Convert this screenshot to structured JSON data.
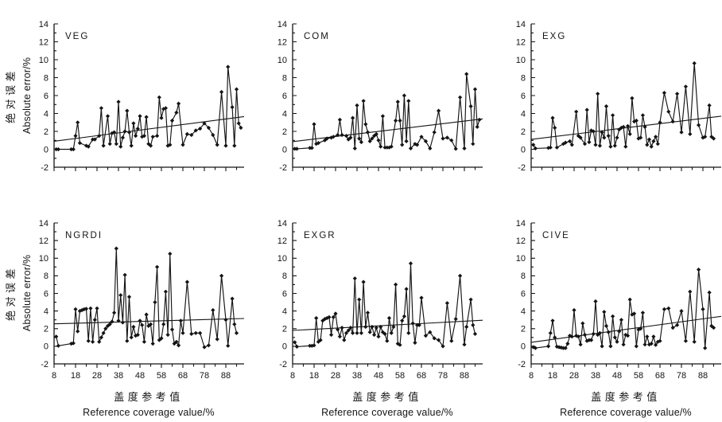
{
  "figure": {
    "ylabel_cn": "绝对误差",
    "ylabel_en": "Absolute error/%",
    "xlabel_cn": "盖度参考值",
    "xlabel_en": "Reference coverage value/%",
    "ink_color": "#141414",
    "background": "#ffffff"
  },
  "axes": {
    "xlim": [
      8,
      96.5
    ],
    "ylim": [
      -2,
      14
    ],
    "xticks": [
      8,
      18,
      28,
      38,
      48,
      58,
      68,
      78,
      88
    ],
    "xticks_minor": [
      13,
      23,
      33,
      43,
      53,
      63,
      73,
      83,
      93
    ],
    "yticks": [
      -2,
      0,
      2,
      4,
      6,
      8,
      10,
      12,
      14
    ],
    "yticks_minor": [
      -1,
      1,
      3,
      5,
      7,
      9,
      11,
      13
    ],
    "grid": false,
    "x_tick_labels_bottom_row_only": true
  },
  "chart_data": [
    {
      "type": "line",
      "label": "VEG",
      "marker": "diamond",
      "x": [
        9,
        10,
        16,
        17,
        18,
        19,
        20,
        23,
        24,
        26,
        27,
        29,
        30,
        31,
        33,
        34,
        35,
        36,
        37,
        38,
        39,
        40,
        41,
        42,
        43,
        44,
        45,
        46,
        47,
        48,
        49,
        50,
        51,
        52,
        53,
        54,
        56,
        57,
        58,
        59,
        60,
        61,
        62,
        63,
        65,
        66,
        68,
        70,
        72,
        74,
        76,
        78,
        80,
        82,
        84,
        86,
        88,
        89,
        91,
        92,
        93,
        94,
        95
      ],
      "y": [
        0,
        0,
        0,
        0,
        1.5,
        3,
        0.7,
        0.4,
        0.3,
        1.1,
        1.1,
        1.5,
        4.6,
        0.4,
        3.7,
        0.6,
        1.8,
        1.9,
        0.6,
        5.3,
        0.3,
        1.3,
        2,
        4.3,
        1.9,
        0.4,
        2.9,
        1.5,
        2.3,
        3.7,
        1.4,
        1.5,
        3.6,
        0.6,
        0.4,
        1.4,
        1.5,
        5.8,
        3.5,
        4.5,
        4.6,
        0.4,
        0.5,
        3.2,
        4.1,
        5.1,
        0.5,
        1.7,
        1.6,
        2.1,
        2.3,
        2.9,
        2.4,
        1.6,
        0.5,
        6.4,
        0.4,
        9.2,
        4.7,
        0.4,
        6.7,
        2.9,
        2.4
      ],
      "trend": [
        0.9,
        3.65
      ]
    },
    {
      "type": "line",
      "label": "COM",
      "marker": "diamond",
      "x": [
        9,
        10,
        16,
        17,
        18,
        19,
        20,
        23,
        24,
        26,
        27,
        29,
        30,
        31,
        33,
        34,
        35,
        36,
        37,
        38,
        39,
        40,
        41,
        42,
        43,
        44,
        45,
        46,
        47,
        48,
        49,
        50,
        51,
        52,
        53,
        54,
        56,
        57,
        58,
        59,
        60,
        61,
        62,
        63,
        65,
        66,
        68,
        70,
        72,
        74,
        76,
        78,
        80,
        82,
        84,
        86,
        88,
        89,
        91,
        92,
        93,
        94,
        95
      ],
      "y": [
        0.05,
        0.05,
        0.15,
        0.15,
        2.8,
        0.6,
        0.7,
        1,
        1.2,
        1.3,
        1.4,
        1.6,
        3.3,
        1.6,
        1.5,
        1.1,
        1.3,
        3.5,
        0.1,
        4.9,
        1.2,
        0.8,
        5.4,
        2.8,
        1.9,
        0.9,
        1.2,
        1.5,
        1.7,
        1,
        0.3,
        3.7,
        0.2,
        0.2,
        0.2,
        0.3,
        3.2,
        5.3,
        3.2,
        0.5,
        6,
        0.9,
        5.4,
        0.1,
        0.6,
        0.5,
        1.4,
        0.9,
        0.1,
        1.9,
        4.3,
        1.2,
        1.3,
        1,
        0.05,
        5.8,
        0.1,
        8.4,
        4.8,
        0.6,
        6.7,
        2.5,
        3.3
      ],
      "trend": [
        0.85,
        3.4
      ]
    },
    {
      "type": "line",
      "label": "EXG",
      "marker": "diamond",
      "x": [
        9,
        10,
        16,
        17,
        18,
        19,
        20,
        23,
        24,
        26,
        27,
        29,
        30,
        31,
        33,
        34,
        35,
        36,
        37,
        38,
        39,
        40,
        41,
        42,
        43,
        44,
        45,
        46,
        47,
        48,
        49,
        50,
        51,
        52,
        53,
        54,
        55,
        56,
        57,
        58,
        59,
        60,
        61,
        62,
        63,
        64,
        65,
        66,
        67,
        68,
        70,
        72,
        74,
        76,
        78,
        80,
        82,
        84,
        86,
        88,
        89,
        91,
        92,
        93
      ],
      "y": [
        0.5,
        0.1,
        0.15,
        0.2,
        3.5,
        2.4,
        0.2,
        0.6,
        0.75,
        0.9,
        0.5,
        4.2,
        1.5,
        1.3,
        0.6,
        4.4,
        0.8,
        2.1,
        2,
        0.5,
        6.2,
        0.4,
        1.9,
        1.3,
        4.8,
        1.5,
        0.3,
        3.8,
        0.4,
        1.3,
        2.2,
        2.4,
        2.5,
        0.3,
        2.6,
        1.7,
        5.7,
        3.1,
        3.2,
        1.2,
        1.3,
        3.8,
        2.5,
        0.5,
        1.1,
        0.3,
        0.9,
        1.4,
        0.6,
        3,
        6.3,
        4.2,
        3.1,
        6.2,
        1.9,
        7,
        1.7,
        9.6,
        2.7,
        1.3,
        1.4,
        4.9,
        1.4,
        1.2
      ],
      "trend": [
        1.1,
        3.7
      ]
    },
    {
      "type": "line",
      "label": "NGRDI",
      "marker": "diamond",
      "x": [
        9,
        10,
        16,
        17,
        18,
        19,
        20,
        21,
        22,
        23,
        24,
        25,
        26,
        27,
        28,
        29,
        30,
        31,
        32,
        33,
        34,
        35,
        36,
        37,
        38,
        39,
        40,
        41,
        42,
        43,
        44,
        45,
        46,
        47,
        48,
        49,
        50,
        51,
        52,
        53,
        54,
        55,
        56,
        57,
        58,
        59,
        60,
        61,
        62,
        63,
        64,
        65,
        66,
        67,
        68,
        70,
        72,
        74,
        76,
        78,
        80,
        82,
        84,
        86,
        88,
        89,
        91,
        92,
        93
      ],
      "y": [
        1.1,
        0.05,
        0.3,
        0.35,
        4.2,
        1.7,
        4,
        4.1,
        4.2,
        4.25,
        0.6,
        4.3,
        0.5,
        3,
        4.3,
        0.5,
        1,
        1.5,
        2,
        2.3,
        2.5,
        2.8,
        3.8,
        11.1,
        2.9,
        5.8,
        2.7,
        8.1,
        0.6,
        5.6,
        1,
        2.2,
        1.2,
        1.3,
        2.9,
        2.4,
        0.5,
        3.6,
        2.3,
        2.5,
        0.3,
        5,
        9,
        0.7,
        0.9,
        2.5,
        6.2,
        1.3,
        10.5,
        1.9,
        0.3,
        0.5,
        0.1,
        2.9,
        1.5,
        7.3,
        1.4,
        1.5,
        1.5,
        -0.1,
        0.1,
        4.1,
        0.8,
        8,
        3,
        0.05,
        5.4,
        2.5,
        1.5
      ],
      "trend": [
        2.55,
        3.15
      ]
    },
    {
      "type": "line",
      "label": "EXGR",
      "marker": "diamond",
      "x": [
        9,
        10,
        16,
        17,
        18,
        19,
        20,
        21,
        22,
        23,
        24,
        25,
        26,
        27,
        28,
        29,
        30,
        31,
        32,
        33,
        34,
        35,
        36,
        37,
        38,
        39,
        40,
        41,
        42,
        43,
        44,
        45,
        46,
        47,
        48,
        49,
        50,
        51,
        52,
        53,
        54,
        55,
        56,
        57,
        58,
        59,
        60,
        61,
        62,
        63,
        64,
        65,
        66,
        67,
        68,
        70,
        72,
        74,
        76,
        78,
        80,
        82,
        84,
        86,
        88,
        89,
        91,
        92,
        93
      ],
      "y": [
        0.45,
        -0.05,
        0.05,
        0.05,
        0.1,
        3.2,
        0.5,
        0.7,
        2.9,
        3.1,
        3.2,
        3.3,
        1.3,
        3.3,
        3.7,
        1.9,
        1.1,
        2.1,
        0.7,
        1.5,
        1.8,
        2.1,
        1.5,
        7.7,
        1.5,
        5.3,
        1.5,
        7.3,
        2.2,
        3.8,
        1.6,
        2.2,
        1.3,
        2.1,
        1.1,
        2.2,
        1.6,
        1.4,
        0.6,
        3.2,
        1.5,
        2.2,
        7,
        0.3,
        0.15,
        2.9,
        3.4,
        6.5,
        1.5,
        9.4,
        2.6,
        0.4,
        2.4,
        2.4,
        5.5,
        1.2,
        1.6,
        0.9,
        0.7,
        0,
        4.9,
        0.6,
        3.1,
        8,
        0.2,
        2.2,
        5.3,
        2.4,
        1.4
      ],
      "trend": [
        1.8,
        2.95
      ]
    },
    {
      "type": "line",
      "label": "CIVE",
      "marker": "diamond",
      "x": [
        9,
        10,
        16,
        17,
        18,
        19,
        20,
        21,
        22,
        23,
        24,
        25,
        26,
        27,
        28,
        29,
        30,
        31,
        32,
        33,
        34,
        35,
        36,
        37,
        38,
        39,
        40,
        41,
        42,
        43,
        44,
        45,
        46,
        47,
        48,
        49,
        50,
        51,
        52,
        53,
        54,
        55,
        56,
        57,
        58,
        59,
        60,
        61,
        62,
        63,
        64,
        65,
        66,
        67,
        68,
        70,
        72,
        74,
        76,
        78,
        80,
        82,
        84,
        86,
        88,
        89,
        91,
        92,
        93
      ],
      "y": [
        -0.1,
        -0.2,
        0,
        1.5,
        2.9,
        1,
        -0.05,
        -0.1,
        -0.15,
        -0.2,
        -0.2,
        0.3,
        1.2,
        1.1,
        4.1,
        1.2,
        1.1,
        0.2,
        2.6,
        1.3,
        0.6,
        0.7,
        0.7,
        1.4,
        5.1,
        1.3,
        1.5,
        0,
        3.9,
        2.3,
        1.6,
        0,
        3.4,
        1,
        0.5,
        1.7,
        3,
        0.2,
        1.3,
        1.2,
        5.3,
        3.6,
        3.7,
        0,
        1.9,
        2,
        3.8,
        0.2,
        1.1,
        0.2,
        0.3,
        1.1,
        0.15,
        0.5,
        0.6,
        4.2,
        4.3,
        2.1,
        2.4,
        4,
        0.6,
        6.2,
        0.5,
        8.7,
        4.2,
        -0.2,
        6.1,
        2.3,
        2.1
      ],
      "trend": [
        0.45,
        3.4
      ]
    }
  ]
}
